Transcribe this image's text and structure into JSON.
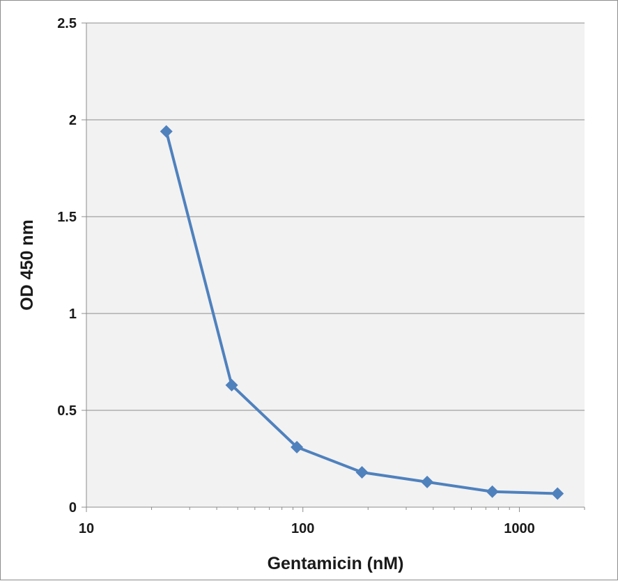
{
  "chart_data": {
    "type": "line",
    "title": "",
    "xlabel": "Gentamicin (nM)",
    "ylabel": "OD 450 nm",
    "x_scale": "log",
    "xlim": [
      10,
      2000
    ],
    "ylim": [
      0,
      2.5
    ],
    "x_ticks": [
      10,
      100,
      1000
    ],
    "x_tick_labels": [
      "10",
      "100",
      "1000"
    ],
    "y_ticks": [
      0,
      0.5,
      1,
      1.5,
      2,
      2.5
    ],
    "y_tick_labels": [
      "0",
      "0.5",
      "1",
      "1.5",
      "2",
      "2.5"
    ],
    "grid": "horizontal",
    "legend": "none",
    "series": [
      {
        "color": "#4f81bd",
        "marker": "diamond",
        "x": [
          23.4,
          46.9,
          93.8,
          187.5,
          375,
          750,
          1500
        ],
        "y": [
          1.94,
          0.63,
          0.31,
          0.18,
          0.13,
          0.08,
          0.07
        ]
      }
    ],
    "colors": {
      "plot_background": "#f2f2f2",
      "gridline": "#8c8c8c",
      "line": "#4f81bd"
    }
  }
}
